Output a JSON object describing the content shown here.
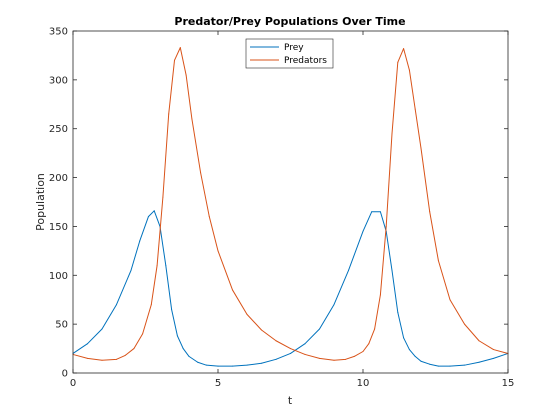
{
  "chart_data": {
    "type": "line",
    "title": "Predator/Prey Populations Over Time",
    "xlabel": "t",
    "ylabel": "Population",
    "xlim": [
      0,
      15
    ],
    "ylim": [
      0,
      350
    ],
    "xticks": [
      0,
      5,
      10,
      15
    ],
    "yticks": [
      0,
      50,
      100,
      150,
      200,
      250,
      300,
      350
    ],
    "grid": false,
    "legend_position": "top-center",
    "series": [
      {
        "name": "Prey",
        "color": "#0072BD",
        "x": [
          0,
          0.5,
          1,
          1.5,
          2,
          2.3,
          2.6,
          2.8,
          3.0,
          3.2,
          3.4,
          3.6,
          3.8,
          4.0,
          4.3,
          4.6,
          5.0,
          5.5,
          6,
          6.5,
          7,
          7.5,
          8,
          8.5,
          9,
          9.5,
          10,
          10.3,
          10.6,
          10.8,
          11.0,
          11.2,
          11.4,
          11.6,
          11.8,
          12.0,
          12.3,
          12.6,
          13.0,
          13.5,
          14,
          14.5,
          15
        ],
        "y": [
          20,
          30,
          45,
          70,
          105,
          135,
          160,
          166,
          150,
          110,
          65,
          38,
          25,
          17,
          11,
          8,
          7,
          7,
          8,
          10,
          14,
          20,
          30,
          45,
          70,
          105,
          145,
          165,
          165,
          145,
          105,
          62,
          36,
          24,
          17,
          12,
          9,
          7,
          7,
          8,
          11,
          15,
          20
        ]
      },
      {
        "name": "Predators",
        "color": "#D95319",
        "x": [
          0,
          0.5,
          1,
          1.5,
          1.8,
          2.1,
          2.4,
          2.7,
          2.9,
          3.1,
          3.3,
          3.5,
          3.7,
          3.9,
          4.1,
          4.4,
          4.7,
          5.0,
          5.5,
          6,
          6.5,
          7,
          7.5,
          8,
          8.5,
          9,
          9.4,
          9.7,
          10.0,
          10.2,
          10.4,
          10.6,
          10.8,
          11.0,
          11.2,
          11.4,
          11.6,
          11.8,
          12.0,
          12.3,
          12.6,
          13.0,
          13.5,
          14,
          14.5,
          15
        ],
        "y": [
          19,
          15,
          13,
          14,
          18,
          25,
          40,
          70,
          110,
          180,
          265,
          320,
          333,
          305,
          260,
          205,
          160,
          125,
          85,
          60,
          44,
          33,
          25,
          19,
          15,
          13,
          14,
          17,
          22,
          30,
          45,
          80,
          150,
          245,
          318,
          332,
          310,
          270,
          230,
          165,
          115,
          75,
          50,
          33,
          24,
          20
        ]
      }
    ]
  }
}
